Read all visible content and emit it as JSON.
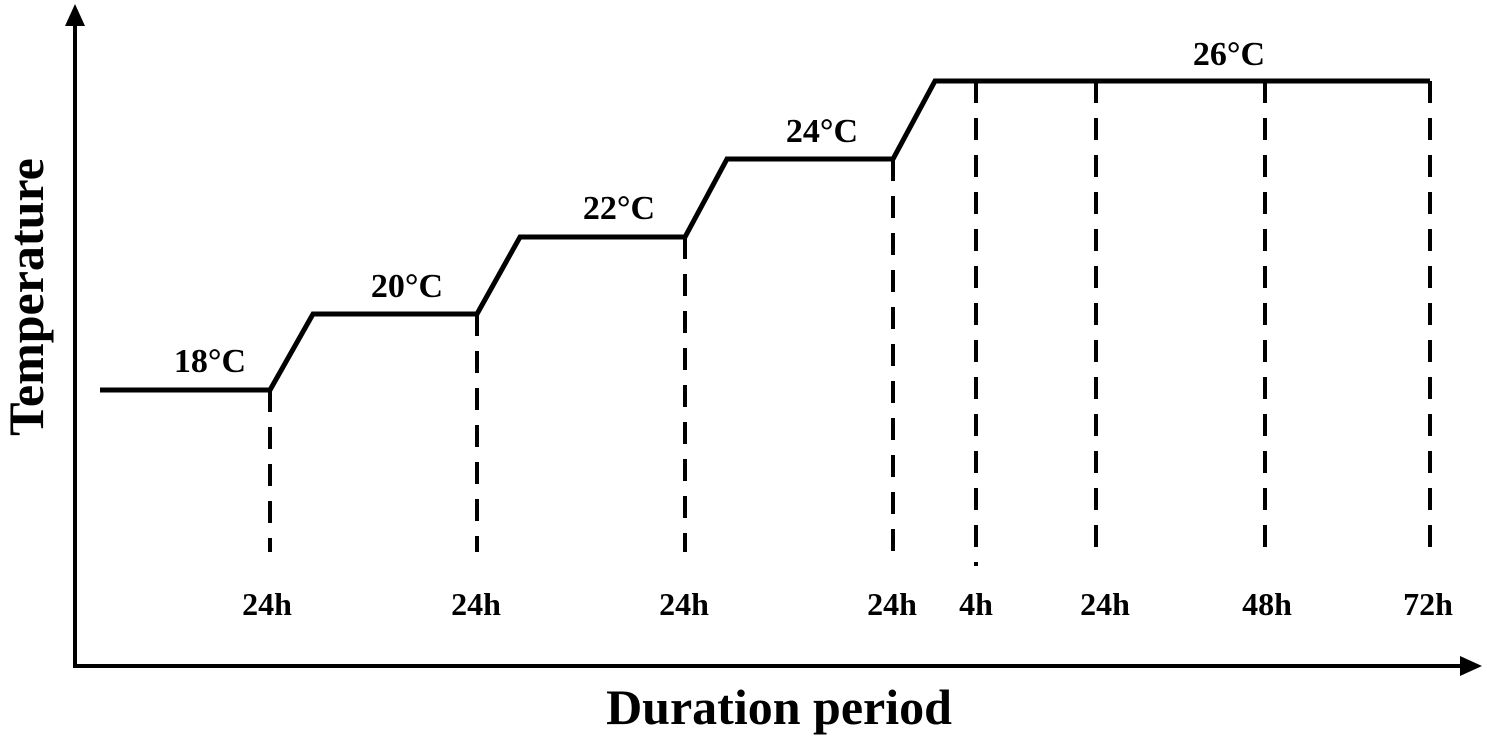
{
  "axes": {
    "x_label": "Duration period",
    "y_label": "Temperature"
  },
  "steps": [
    {
      "temp_label": "18°C",
      "temperature_c": 18
    },
    {
      "temp_label": "20°C",
      "temperature_c": 20
    },
    {
      "temp_label": "22°C",
      "temperature_c": 22
    },
    {
      "temp_label": "24°C",
      "temperature_c": 24
    },
    {
      "temp_label": "26°C",
      "temperature_c": 26
    }
  ],
  "duration_labels": [
    "24h",
    "24h",
    "24h",
    "24h",
    "4h",
    "24h",
    "48h",
    "72h"
  ],
  "colors": {
    "line": "#000000",
    "background": "#ffffff"
  }
}
